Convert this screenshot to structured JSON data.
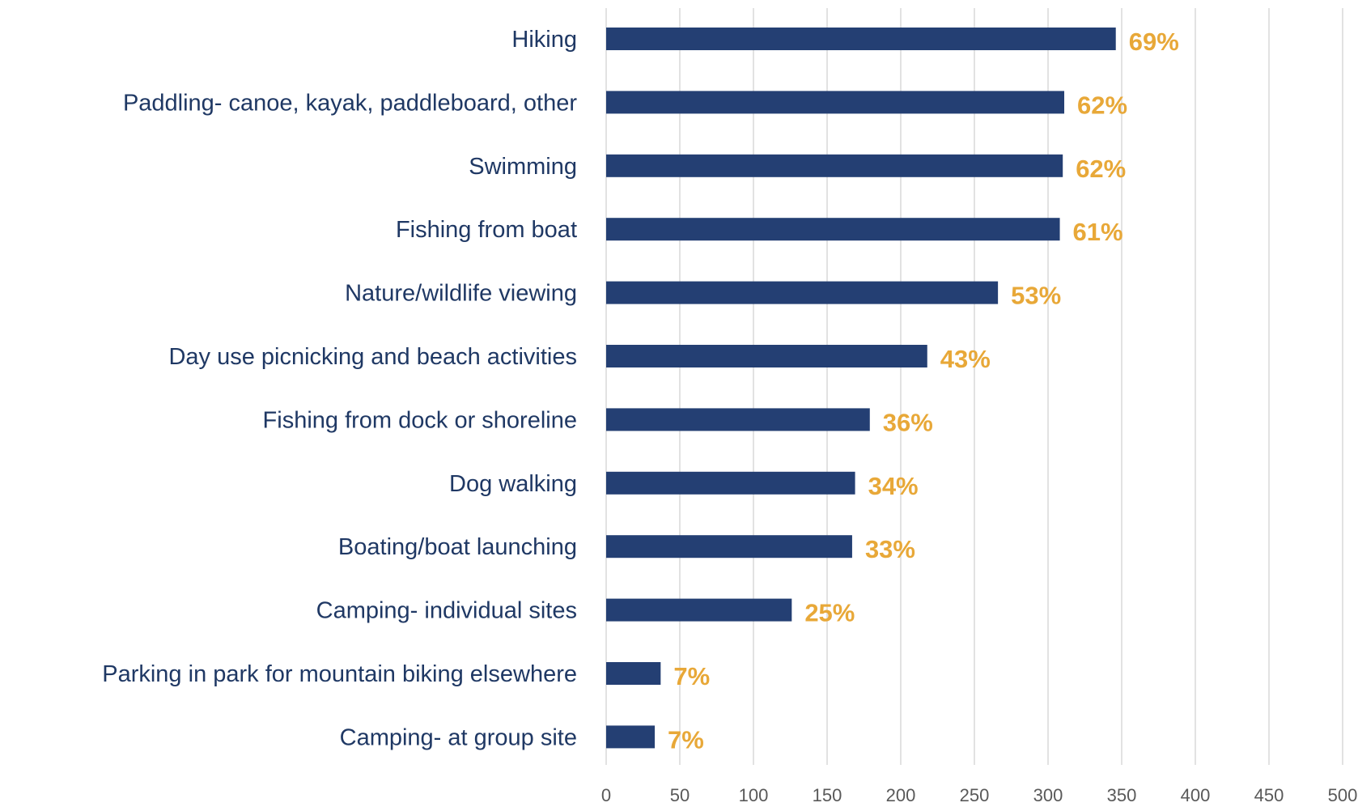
{
  "chart_data": {
    "type": "bar",
    "orientation": "horizontal",
    "categories": [
      "Hiking",
      "Paddling- canoe, kayak, paddleboard, other",
      "Swimming",
      "Fishing from boat",
      "Nature/wildlife viewing",
      "Day use picnicking and beach activities",
      "Fishing from dock or shoreline",
      "Dog walking",
      "Boating/boat launching",
      "Camping- individual sites",
      "Parking in park for mountain biking elsewhere",
      "Camping- at group site"
    ],
    "values": [
      346,
      311,
      310,
      308,
      266,
      218,
      179,
      169,
      167,
      126,
      37,
      33
    ],
    "data_labels": [
      "69%",
      "62%",
      "62%",
      "61%",
      "53%",
      "43%",
      "36%",
      "34%",
      "33%",
      "25%",
      "7%",
      "7%"
    ],
    "xlim": [
      0,
      500
    ],
    "xticks": [
      "0",
      "50",
      "100",
      "150",
      "200",
      "250",
      "300",
      "350",
      "400",
      "450",
      "500"
    ],
    "grid": "vertical",
    "colors": {
      "bar": "#243f73",
      "label_text": "#1f3864",
      "data_label": "#e8a838",
      "grid": "#d9d9d9"
    }
  }
}
